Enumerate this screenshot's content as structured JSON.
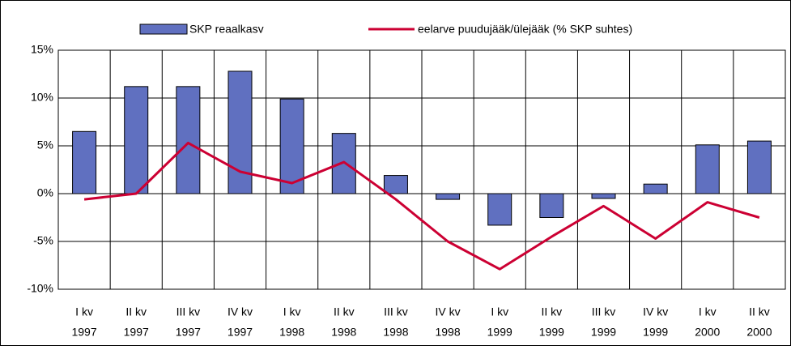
{
  "chart_data": {
    "type": "bar-line",
    "categories": [
      [
        "I kv",
        "1997"
      ],
      [
        "II kv",
        "1997"
      ],
      [
        "III kv",
        "1997"
      ],
      [
        "IV kv",
        "1997"
      ],
      [
        "I kv",
        "1998"
      ],
      [
        "II kv",
        "1998"
      ],
      [
        "III kv",
        "1998"
      ],
      [
        "IV kv",
        "1998"
      ],
      [
        "I kv",
        "1999"
      ],
      [
        "II kv",
        "1999"
      ],
      [
        "III kv",
        "1999"
      ],
      [
        "IV kv",
        "1999"
      ],
      [
        "I kv",
        "2000"
      ],
      [
        "II kv",
        "2000"
      ]
    ],
    "series": [
      {
        "name": "SKP reaalkasv",
        "type": "bar",
        "color": "#6070c0",
        "values": [
          6.5,
          11.2,
          11.2,
          12.8,
          9.9,
          6.3,
          1.9,
          -0.6,
          -3.3,
          -2.5,
          -0.5,
          1.0,
          5.1,
          5.5
        ]
      },
      {
        "name": "eelarve puudujääk/ülejääk (% SKP suhtes)",
        "type": "line",
        "color": "#cc0033",
        "values": [
          -0.6,
          0.0,
          5.3,
          2.3,
          1.1,
          3.3,
          -0.6,
          -5.0,
          -7.9,
          -4.5,
          -1.3,
          -4.7,
          -0.9,
          -2.5
        ]
      }
    ],
    "ylim": [
      -10,
      15
    ],
    "yticks": [
      {
        "value": -10,
        "label": "-10%"
      },
      {
        "value": -5,
        "label": "-5%"
      },
      {
        "value": 0,
        "label": "0%"
      },
      {
        "value": 5,
        "label": "5%"
      },
      {
        "value": 10,
        "label": "10%"
      },
      {
        "value": 15,
        "label": "15%"
      }
    ],
    "grid": true
  }
}
